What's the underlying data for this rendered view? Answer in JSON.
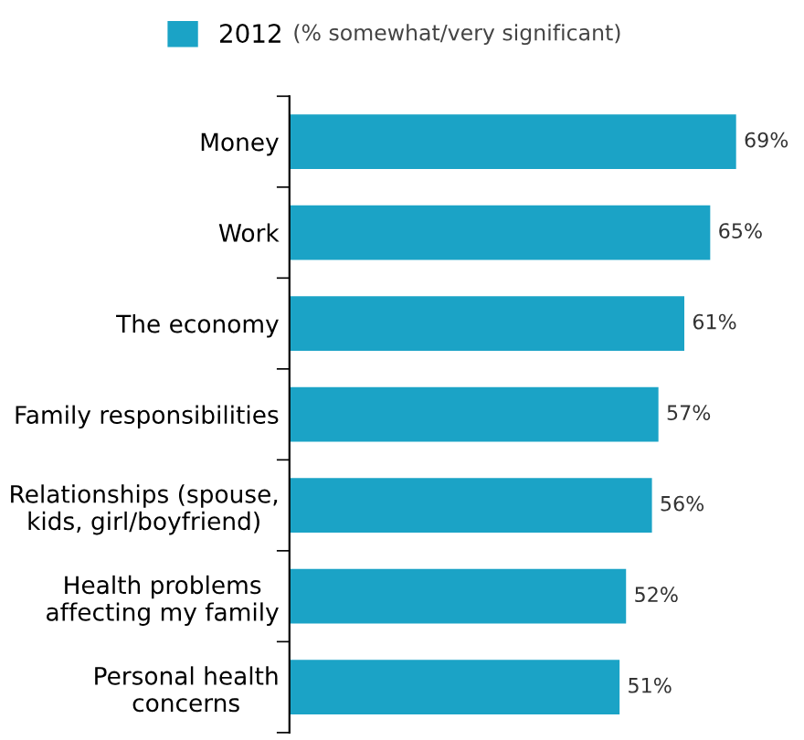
{
  "chart_data": {
    "type": "bar",
    "orientation": "horizontal",
    "subtitle": "(% somewhat/very significant)",
    "categories": [
      "Money",
      "Work",
      "The economy",
      "Family responsibilities",
      "Relationships (spouse,\nkids, girl/boyfriend)",
      "Health problems\naffecting my family",
      "Personal health\nconcerns"
    ],
    "series": [
      {
        "name": "2012",
        "color": "#1ba3c6",
        "values": [
          69,
          65,
          61,
          57,
          56,
          52,
          51
        ],
        "value_labels": [
          "69%",
          "65%",
          "61%",
          "57%",
          "56%",
          "52%",
          "51%"
        ]
      }
    ],
    "legend": "top",
    "grid": false
  }
}
